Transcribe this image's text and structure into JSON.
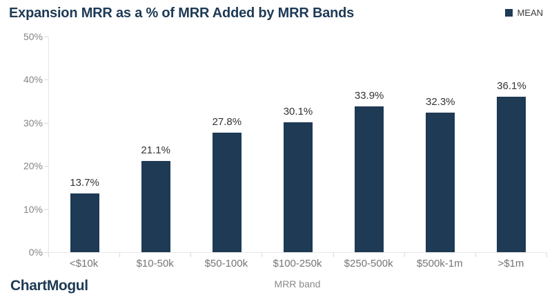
{
  "header": {
    "title": "Expansion MRR as a % of MRR Added by MRR Bands"
  },
  "legend": {
    "label": "MEAN",
    "swatch_color": "#1e3a54"
  },
  "footer": {
    "brand": "ChartMogul"
  },
  "colors": {
    "bar": "#1e3a54",
    "title_text": "#1d3a55",
    "axis_line": "#e7e7e7",
    "tick_line": "#d9d9d9",
    "axis_text": "#858585",
    "category_text": "#757575",
    "value_text": "#333333"
  },
  "chart_data": {
    "type": "bar",
    "title": "Expansion MRR as a % of MRR Added by MRR Bands",
    "series": [
      {
        "name": "MEAN",
        "values": [
          13.7,
          21.1,
          27.8,
          30.1,
          33.9,
          32.3,
          36.1
        ],
        "value_labels": [
          "13.7%",
          "21.1%",
          "27.8%",
          "30.1%",
          "33.9%",
          "32.3%",
          "36.1%"
        ]
      }
    ],
    "categories": [
      "<$10k",
      "$10-50k",
      "$50-100k",
      "$100-250k",
      "$250-500k",
      "$500k-1m",
      ">$1m"
    ],
    "xlabel": "MRR band",
    "ylabel": "",
    "ylim": [
      0,
      50
    ],
    "ytick_values": [
      0,
      10,
      20,
      30,
      40,
      50
    ],
    "ytick_labels": [
      "0%",
      "10%",
      "20%",
      "30%",
      "40%",
      "50%"
    ],
    "grid": false,
    "legend_position": "top-right",
    "data_labels": true
  }
}
